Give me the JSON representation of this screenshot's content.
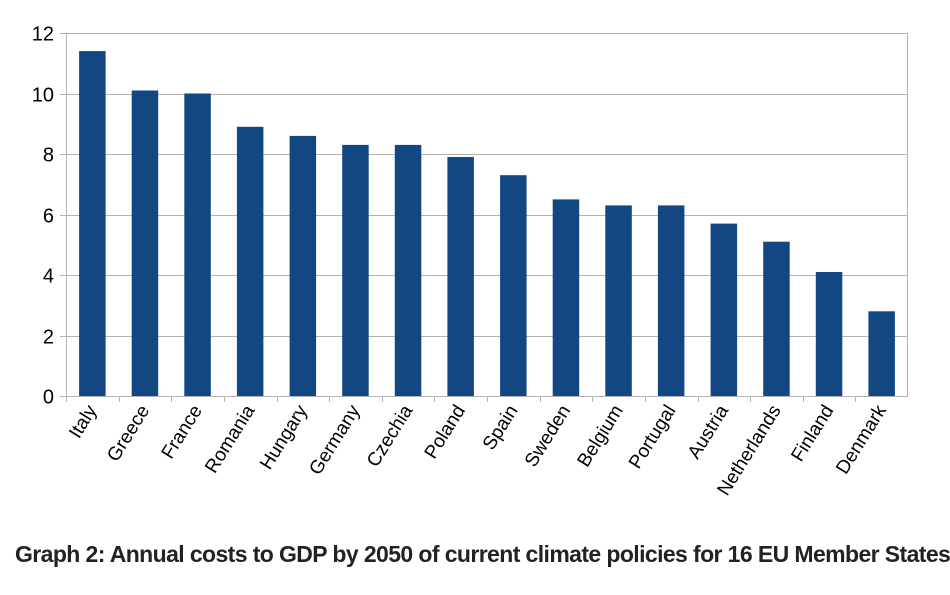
{
  "chart_data": {
    "type": "bar",
    "title": "Graph 2: Annual costs to GDP by 2050 of current climate policies for 16 EU Member States",
    "categories": [
      "Italy",
      "Greece",
      "France",
      "Romania",
      "Hungary",
      "Germany",
      "Czechia",
      "Poland",
      "Spain",
      "Sweden",
      "Belgium",
      "Portugal",
      "Austria",
      "Netherlands",
      "Finland",
      "Denmark"
    ],
    "values": [
      11.4,
      10.1,
      10.0,
      8.9,
      8.6,
      8.3,
      8.3,
      7.9,
      7.3,
      6.5,
      6.3,
      6.3,
      5.7,
      5.1,
      4.1,
      2.8
    ],
    "yticks": [
      "0",
      "2",
      "4",
      "6",
      "8",
      "10",
      "12"
    ],
    "ylim": [
      0,
      12
    ],
    "xlabel": "",
    "ylabel": "",
    "grid": true,
    "legend": "none",
    "bar_color": "#124782",
    "grid_color": "#b3b3b3"
  }
}
